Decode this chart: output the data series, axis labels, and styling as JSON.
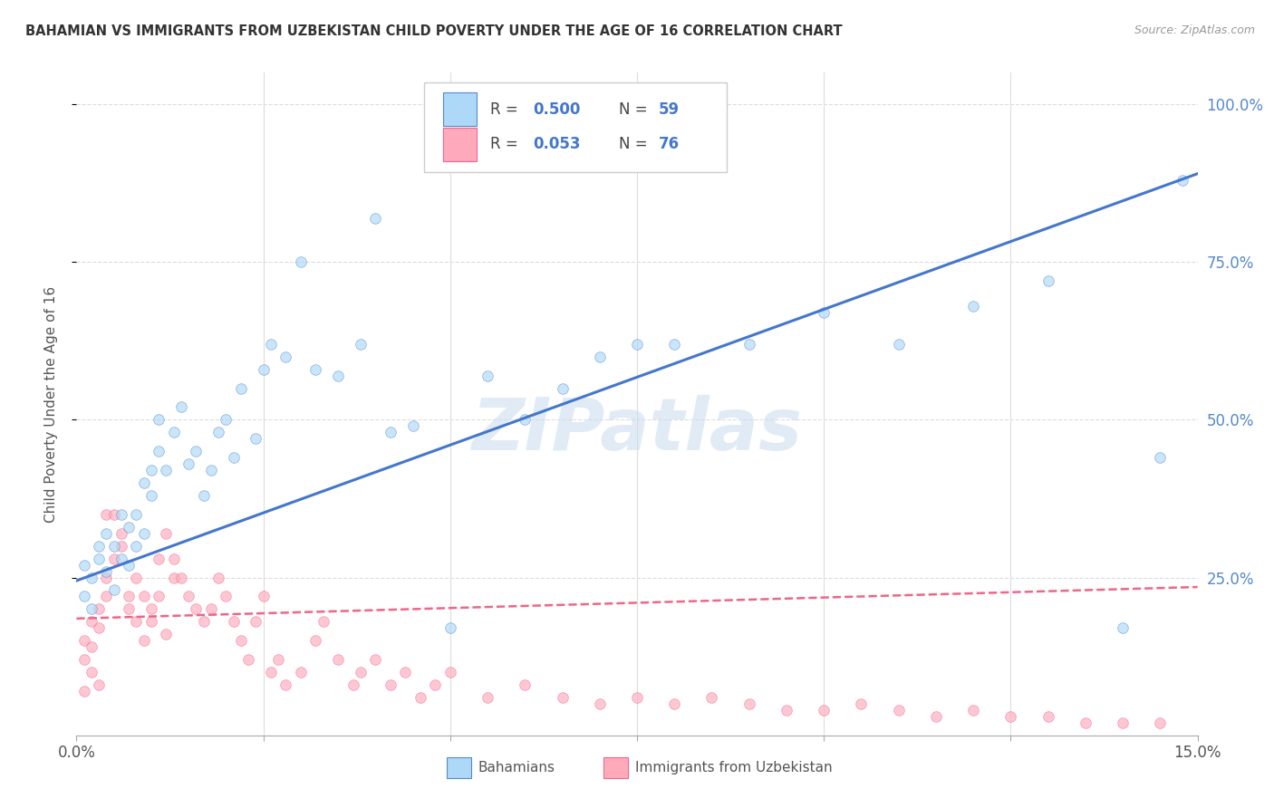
{
  "title": "BAHAMIAN VS IMMIGRANTS FROM UZBEKISTAN CHILD POVERTY UNDER THE AGE OF 16 CORRELATION CHART",
  "source": "Source: ZipAtlas.com",
  "ylabel": "Child Poverty Under the Age of 16",
  "xlim": [
    0.0,
    0.15
  ],
  "ylim": [
    0.0,
    1.05
  ],
  "legend_R_blue": "0.500",
  "legend_N_blue": "59",
  "legend_R_pink": "0.053",
  "legend_N_pink": "76",
  "legend_label_blue": "Bahamians",
  "legend_label_pink": "Immigrants from Uzbekistan",
  "blue_fill": "#ADD8F7",
  "blue_edge": "#5588CC",
  "pink_fill": "#FFAABC",
  "pink_edge": "#EE6688",
  "blue_line_color": "#4477CC",
  "pink_line_color": "#EE6688",
  "blue_scatter_x": [
    0.001,
    0.001,
    0.002,
    0.002,
    0.003,
    0.003,
    0.004,
    0.004,
    0.005,
    0.005,
    0.006,
    0.006,
    0.007,
    0.007,
    0.008,
    0.008,
    0.009,
    0.009,
    0.01,
    0.01,
    0.011,
    0.011,
    0.012,
    0.013,
    0.014,
    0.015,
    0.016,
    0.017,
    0.018,
    0.019,
    0.02,
    0.021,
    0.022,
    0.024,
    0.025,
    0.026,
    0.028,
    0.03,
    0.032,
    0.035,
    0.038,
    0.04,
    0.042,
    0.045,
    0.05,
    0.055,
    0.06,
    0.065,
    0.07,
    0.075,
    0.08,
    0.09,
    0.1,
    0.11,
    0.12,
    0.13,
    0.14,
    0.145,
    0.148
  ],
  "blue_scatter_y": [
    0.22,
    0.27,
    0.2,
    0.25,
    0.28,
    0.3,
    0.26,
    0.32,
    0.3,
    0.23,
    0.28,
    0.35,
    0.33,
    0.27,
    0.35,
    0.3,
    0.32,
    0.4,
    0.38,
    0.42,
    0.45,
    0.5,
    0.42,
    0.48,
    0.52,
    0.43,
    0.45,
    0.38,
    0.42,
    0.48,
    0.5,
    0.44,
    0.55,
    0.47,
    0.58,
    0.62,
    0.6,
    0.75,
    0.58,
    0.57,
    0.62,
    0.82,
    0.48,
    0.49,
    0.17,
    0.57,
    0.5,
    0.55,
    0.6,
    0.62,
    0.62,
    0.62,
    0.67,
    0.62,
    0.68,
    0.72,
    0.17,
    0.44,
    0.88
  ],
  "pink_scatter_x": [
    0.001,
    0.001,
    0.001,
    0.002,
    0.002,
    0.002,
    0.003,
    0.003,
    0.003,
    0.004,
    0.004,
    0.004,
    0.005,
    0.005,
    0.006,
    0.006,
    0.007,
    0.007,
    0.008,
    0.008,
    0.009,
    0.009,
    0.01,
    0.01,
    0.011,
    0.011,
    0.012,
    0.012,
    0.013,
    0.013,
    0.014,
    0.015,
    0.016,
    0.017,
    0.018,
    0.019,
    0.02,
    0.021,
    0.022,
    0.023,
    0.024,
    0.025,
    0.026,
    0.027,
    0.028,
    0.03,
    0.032,
    0.033,
    0.035,
    0.037,
    0.038,
    0.04,
    0.042,
    0.044,
    0.046,
    0.048,
    0.05,
    0.055,
    0.06,
    0.065,
    0.07,
    0.075,
    0.08,
    0.085,
    0.09,
    0.095,
    0.1,
    0.105,
    0.11,
    0.115,
    0.12,
    0.125,
    0.13,
    0.135,
    0.14,
    0.145
  ],
  "pink_scatter_y": [
    0.15,
    0.12,
    0.07,
    0.18,
    0.14,
    0.1,
    0.17,
    0.2,
    0.08,
    0.22,
    0.25,
    0.35,
    0.28,
    0.35,
    0.3,
    0.32,
    0.2,
    0.22,
    0.18,
    0.25,
    0.22,
    0.15,
    0.2,
    0.18,
    0.22,
    0.28,
    0.32,
    0.16,
    0.25,
    0.28,
    0.25,
    0.22,
    0.2,
    0.18,
    0.2,
    0.25,
    0.22,
    0.18,
    0.15,
    0.12,
    0.18,
    0.22,
    0.1,
    0.12,
    0.08,
    0.1,
    0.15,
    0.18,
    0.12,
    0.08,
    0.1,
    0.12,
    0.08,
    0.1,
    0.06,
    0.08,
    0.1,
    0.06,
    0.08,
    0.06,
    0.05,
    0.06,
    0.05,
    0.06,
    0.05,
    0.04,
    0.04,
    0.05,
    0.04,
    0.03,
    0.04,
    0.03,
    0.03,
    0.02,
    0.02,
    0.02
  ],
  "blue_trend_x": [
    0.0,
    0.15
  ],
  "blue_trend_y": [
    0.245,
    0.89
  ],
  "pink_trend_x": [
    0.0,
    0.15
  ],
  "pink_trend_y": [
    0.185,
    0.235
  ],
  "watermark": "ZIPatlas",
  "background_color": "#FFFFFF",
  "grid_color": "#DDDDDD",
  "title_color": "#333333",
  "right_axis_color": "#5588CC",
  "marker_size": 70,
  "marker_alpha": 0.65
}
